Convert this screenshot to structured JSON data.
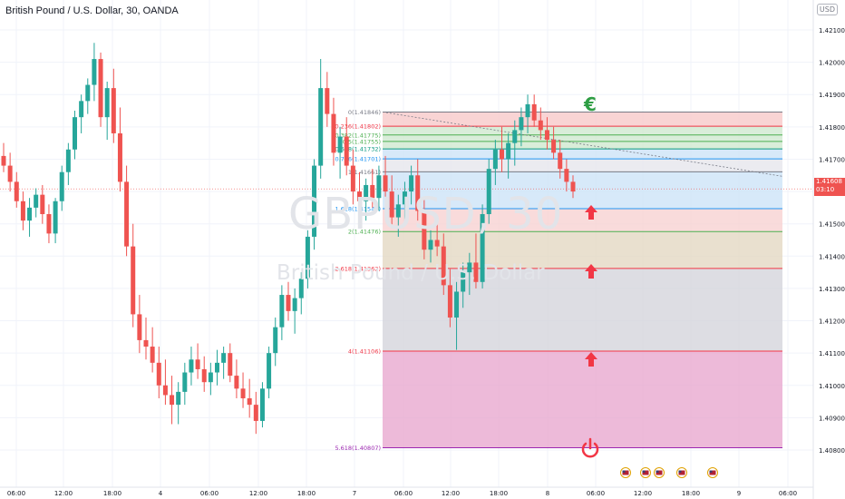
{
  "header": {
    "title": "British Pound / U.S. Dollar, 30, OANDA",
    "currency_badge": "USD",
    "watermark_symbol": "GBPUSD, 30",
    "watermark_name": "British Pound / U.S. Dollar"
  },
  "colors": {
    "up": "#26a69a",
    "down": "#ef5350",
    "arrow": "#f23645",
    "euro": "#2e9e44",
    "fib_top_zone": "#f8c9c9",
    "fib_green_zone": "#cfe8cf",
    "fib_blue_zone": "#cde4f7",
    "fib_pink_zone": "#f8d2d2",
    "fib_tan_zone": "#e3d8c3",
    "fib_grey_zone": "#d4d4dc",
    "fib_magenta_zone": "#e8a9d0"
  },
  "current_price": {
    "value": "1.41608",
    "countdown": "03:10"
  },
  "chart_data": {
    "type": "candlestick",
    "title": "British Pound / U.S. Dollar, 30, OANDA",
    "xlabel": "",
    "ylabel": "",
    "ylim": [
      1.4074,
      1.4222
    ],
    "y_ticks": [
      "1.42100",
      "1.42000",
      "1.41900",
      "1.41800",
      "1.41700",
      "1.41600",
      "1.41500",
      "1.41400",
      "1.41300",
      "1.41200",
      "1.41100",
      "1.41000",
      "1.40900",
      "1.40800"
    ],
    "x_ticks": [
      "06:00",
      "12:00",
      "18:00",
      "4",
      "06:00",
      "12:00",
      "18:00",
      "7",
      "06:00",
      "12:00",
      "18:00",
      "8",
      "06:00",
      "12:00",
      "18:00",
      "9",
      "06:00"
    ],
    "grid": true,
    "candles": [
      [
        1.4171,
        1.4175,
        1.4166,
        1.4168
      ],
      [
        1.4168,
        1.4172,
        1.416,
        1.4163
      ],
      [
        1.4163,
        1.4166,
        1.4155,
        1.4157
      ],
      [
        1.4157,
        1.416,
        1.4148,
        1.4151
      ],
      [
        1.4151,
        1.4158,
        1.4146,
        1.4155
      ],
      [
        1.4155,
        1.4161,
        1.4152,
        1.4159
      ],
      [
        1.4159,
        1.4162,
        1.415,
        1.4153
      ],
      [
        1.4153,
        1.4156,
        1.4144,
        1.4147
      ],
      [
        1.4147,
        1.4158,
        1.4144,
        1.4157
      ],
      [
        1.4157,
        1.4168,
        1.4154,
        1.4166
      ],
      [
        1.4166,
        1.4175,
        1.4162,
        1.4173
      ],
      [
        1.4173,
        1.4185,
        1.417,
        1.4183
      ],
      [
        1.4183,
        1.419,
        1.4178,
        1.4188
      ],
      [
        1.4188,
        1.4195,
        1.4184,
        1.4193
      ],
      [
        1.4193,
        1.4206,
        1.4188,
        1.4201
      ],
      [
        1.4201,
        1.4203,
        1.418,
        1.4183
      ],
      [
        1.4183,
        1.4194,
        1.4176,
        1.4192
      ],
      [
        1.4192,
        1.4198,
        1.4175,
        1.4178
      ],
      [
        1.4178,
        1.4186,
        1.416,
        1.4163
      ],
      [
        1.4163,
        1.4168,
        1.414,
        1.4143
      ],
      [
        1.4143,
        1.415,
        1.4118,
        1.4122
      ],
      [
        1.4122,
        1.4128,
        1.411,
        1.4114
      ],
      [
        1.4114,
        1.4121,
        1.4108,
        1.4112
      ],
      [
        1.4112,
        1.4118,
        1.4104,
        1.4107
      ],
      [
        1.4107,
        1.4112,
        1.4096,
        1.41
      ],
      [
        1.41,
        1.4108,
        1.4094,
        1.4097
      ],
      [
        1.4097,
        1.4103,
        1.4088,
        1.4094
      ],
      [
        1.4094,
        1.4101,
        1.4088,
        1.4098
      ],
      [
        1.4098,
        1.4107,
        1.4094,
        1.4104
      ],
      [
        1.4104,
        1.4112,
        1.41,
        1.4108
      ],
      [
        1.4108,
        1.4113,
        1.4102,
        1.4105
      ],
      [
        1.4105,
        1.4109,
        1.4098,
        1.4101
      ],
      [
        1.4101,
        1.4107,
        1.4097,
        1.4104
      ],
      [
        1.4104,
        1.4111,
        1.41,
        1.4107
      ],
      [
        1.4107,
        1.4112,
        1.4102,
        1.411
      ],
      [
        1.411,
        1.4113,
        1.4101,
        1.4103
      ],
      [
        1.4103,
        1.4108,
        1.4096,
        1.4099
      ],
      [
        1.4099,
        1.4104,
        1.4093,
        1.4096
      ],
      [
        1.4096,
        1.4102,
        1.409,
        1.4094
      ],
      [
        1.4094,
        1.4098,
        1.4085,
        1.4089
      ],
      [
        1.4089,
        1.4101,
        1.4087,
        1.4099
      ],
      [
        1.4099,
        1.4112,
        1.4096,
        1.411
      ],
      [
        1.411,
        1.4121,
        1.4106,
        1.4118
      ],
      [
        1.4118,
        1.4131,
        1.4114,
        1.4128
      ],
      [
        1.4128,
        1.4132,
        1.412,
        1.4123
      ],
      [
        1.4123,
        1.413,
        1.4116,
        1.4127
      ],
      [
        1.4127,
        1.4135,
        1.4122,
        1.4133
      ],
      [
        1.4133,
        1.4148,
        1.413,
        1.4146
      ],
      [
        1.4146,
        1.417,
        1.4142,
        1.4168
      ],
      [
        1.4168,
        1.4201,
        1.4164,
        1.4192
      ],
      [
        1.4192,
        1.4197,
        1.418,
        1.4184
      ],
      [
        1.4184,
        1.4189,
        1.4168,
        1.4172
      ],
      [
        1.4172,
        1.418,
        1.4164,
        1.4177
      ],
      [
        1.4177,
        1.4183,
        1.4165,
        1.4168
      ],
      [
        1.4168,
        1.4173,
        1.4156,
        1.416
      ],
      [
        1.416,
        1.4166,
        1.4152,
        1.4157
      ],
      [
        1.4157,
        1.4164,
        1.4151,
        1.4162
      ],
      [
        1.4162,
        1.4167,
        1.4155,
        1.4158
      ],
      [
        1.4158,
        1.4168,
        1.4154,
        1.4165
      ],
      [
        1.4165,
        1.4171,
        1.4157,
        1.416
      ],
      [
        1.416,
        1.4165,
        1.4149,
        1.4152
      ],
      [
        1.4152,
        1.4159,
        1.4146,
        1.4156
      ],
      [
        1.4156,
        1.4163,
        1.4151,
        1.416
      ],
      [
        1.416,
        1.4168,
        1.4156,
        1.4165
      ],
      [
        1.4165,
        1.417,
        1.4151,
        1.4154
      ],
      [
        1.4154,
        1.4158,
        1.4139,
        1.4142
      ],
      [
        1.4142,
        1.4148,
        1.4138,
        1.4145
      ],
      [
        1.4145,
        1.415,
        1.414,
        1.4143
      ],
      [
        1.4143,
        1.4147,
        1.4128,
        1.4131
      ],
      [
        1.4131,
        1.4136,
        1.4118,
        1.4121
      ],
      [
        1.4121,
        1.4132,
        1.4111,
        1.4129
      ],
      [
        1.4129,
        1.4138,
        1.4124,
        1.4135
      ],
      [
        1.4135,
        1.4141,
        1.4128,
        1.4138
      ],
      [
        1.4138,
        1.4147,
        1.413,
        1.4132
      ],
      [
        1.4132,
        1.4156,
        1.413,
        1.4153
      ],
      [
        1.4153,
        1.417,
        1.415,
        1.4167
      ],
      [
        1.4167,
        1.4176,
        1.4162,
        1.4173
      ],
      [
        1.4173,
        1.418,
        1.4166,
        1.417
      ],
      [
        1.417,
        1.4178,
        1.4164,
        1.4175
      ],
      [
        1.4175,
        1.4182,
        1.4168,
        1.4179
      ],
      [
        1.4179,
        1.4186,
        1.4174,
        1.4183
      ],
      [
        1.4183,
        1.419,
        1.4178,
        1.4187
      ],
      [
        1.4187,
        1.419,
        1.418,
        1.4182
      ],
      [
        1.4182,
        1.4186,
        1.4176,
        1.4179
      ],
      [
        1.4179,
        1.4183,
        1.4173,
        1.4176
      ],
      [
        1.4176,
        1.418,
        1.417,
        1.4172
      ],
      [
        1.4172,
        1.4176,
        1.4164,
        1.4167
      ],
      [
        1.4167,
        1.417,
        1.416,
        1.4163
      ],
      [
        1.4163,
        1.4165,
        1.4158,
        1.416
      ]
    ],
    "fib_levels": [
      {
        "ratio": "0",
        "price": "1.41846",
        "value": 1.41846,
        "label_color": "#787b86"
      },
      {
        "ratio": "0.236",
        "price": "1.41802",
        "value": 1.41802,
        "label_color": "#f23645"
      },
      {
        "ratio": "0.382",
        "price": "1.41775",
        "value": 1.41775,
        "label_color": "#4caf50"
      },
      {
        "ratio": "0.5",
        "price": "1.41755",
        "value": 1.41755,
        "label_color": "#4caf50"
      },
      {
        "ratio": "0.618",
        "price": "1.41732",
        "value": 1.41732,
        "label_color": "#089981"
      },
      {
        "ratio": "0.786",
        "price": "1.41701",
        "value": 1.41701,
        "label_color": "#2196f3"
      },
      {
        "ratio": "1",
        "price": "1.41661",
        "value": 1.41661,
        "label_color": "#787b86"
      },
      {
        "ratio": "1.618",
        "price": "1.41547",
        "value": 1.41547,
        "label_color": "#2196f3"
      },
      {
        "ratio": "2",
        "price": "1.41476",
        "value": 1.41476,
        "label_color": "#4caf50"
      },
      {
        "ratio": "2.618",
        "price": "1.41362",
        "value": 1.41362,
        "label_color": "#f23645"
      },
      {
        "ratio": "4",
        "price": "1.41106",
        "value": 1.41106,
        "label_color": "#f23645"
      },
      {
        "ratio": "5.618",
        "price": "1.40807",
        "value": 1.40807,
        "label_color": "#9c27b0"
      }
    ]
  }
}
